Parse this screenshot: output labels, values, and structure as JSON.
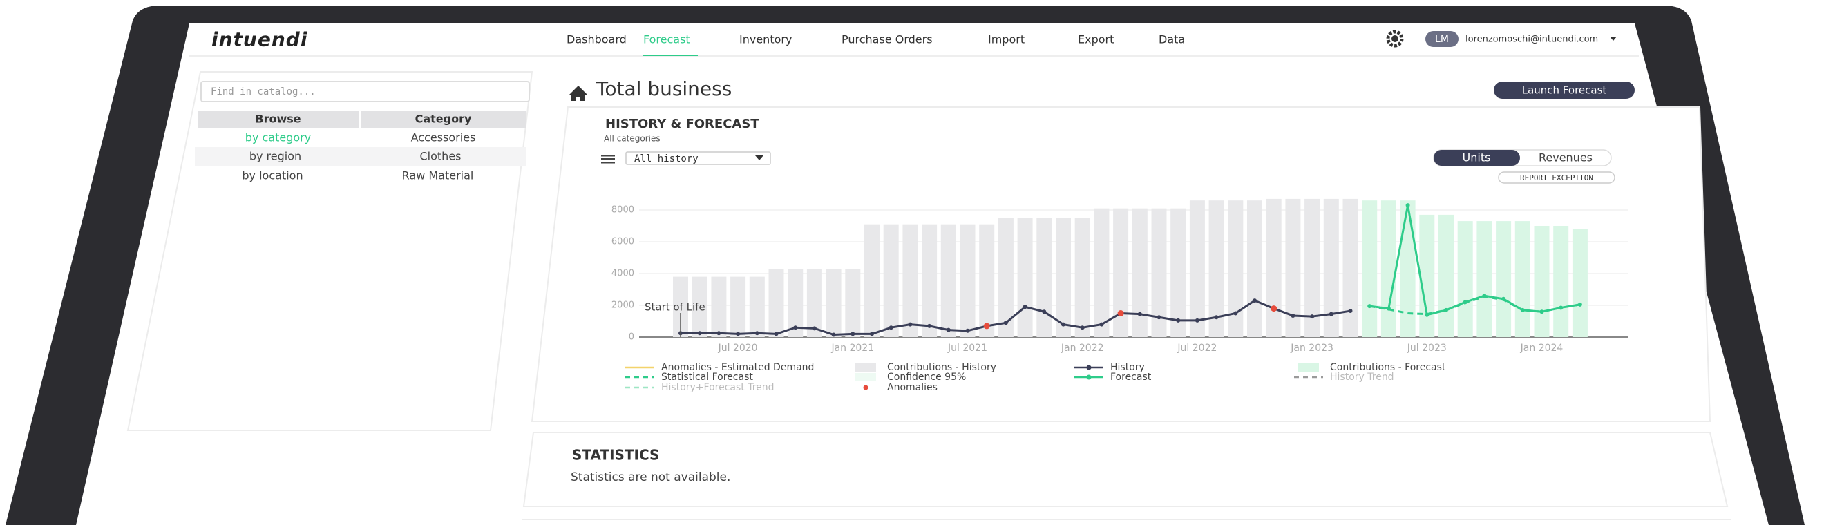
{
  "header": {
    "logo": "intuendi",
    "nav": [
      "Dashboard",
      "Forecast",
      "Inventory",
      "Purchase Orders",
      "Import",
      "Export",
      "Data"
    ],
    "active": 1,
    "avatar": "LM",
    "user": "lorenzomoschi@intuendi.com"
  },
  "sidebar": {
    "search_placeholder": "Find in catalog...",
    "columns": [
      "Browse",
      "Category"
    ],
    "rows": [
      [
        "by category",
        "Accessories"
      ],
      [
        "by region",
        "Clothes"
      ],
      [
        "by location",
        "Raw Material"
      ]
    ],
    "active_row": 0
  },
  "page": {
    "title": "Total business",
    "launch_button": "Launch Forecast",
    "chart_card": {
      "title": "HISTORY & FORECAST",
      "subtitle": "All categories",
      "period": "All history",
      "toggle": [
        "Units",
        "Revenues"
      ],
      "toggle_active": 0,
      "report_button": "REPORT EXCEPTION"
    },
    "statistics": {
      "title": "STATISTICS",
      "message": "Statistics are not available."
    }
  },
  "chart_data": {
    "type": "bar_line",
    "annotation": "Start of Life",
    "categories": [
      null,
      null,
      null,
      "Jul 2020",
      null,
      null,
      null,
      null,
      null,
      "Jan 2021",
      null,
      null,
      null,
      null,
      null,
      "Jul 2021",
      null,
      null,
      null,
      null,
      null,
      "Jan 2022",
      null,
      null,
      null,
      null,
      null,
      "Jul 2022",
      null,
      null,
      null,
      null,
      null,
      "Jan 2023",
      null,
      null,
      null,
      null,
      null,
      "Jul 2023",
      null,
      null,
      null,
      null,
      null,
      "Jan 2024",
      null,
      null
    ],
    "ylim": [
      0,
      9000
    ],
    "yticks": [
      0,
      2000,
      4000,
      6000,
      8000
    ],
    "grid": true,
    "series": [
      {
        "name": "Anomalies - Estimated Demand",
        "color": "#f3d36b",
        "style": "line"
      },
      {
        "name": "Contributions - History",
        "color": "#e8e8ea",
        "style": "bar",
        "values": [
          3800,
          3800,
          3800,
          3800,
          3800,
          4300,
          4300,
          4300,
          4300,
          4300,
          7100,
          7100,
          7100,
          7100,
          7100,
          7100,
          7100,
          7500,
          7500,
          7500,
          7500,
          7500,
          8100,
          8100,
          8100,
          8100,
          8100,
          8600,
          8600,
          8600,
          8600,
          8700,
          8700,
          8700,
          8700,
          8700,
          null,
          null,
          null,
          null,
          null,
          null,
          null,
          null,
          null,
          null,
          null,
          null
        ]
      },
      {
        "name": "History",
        "color": "#3b3f58",
        "style": "line-dot",
        "values": [
          250,
          250,
          250,
          200,
          250,
          200,
          600,
          550,
          150,
          200,
          200,
          600,
          800,
          700,
          450,
          400,
          700,
          900,
          1900,
          1600,
          800,
          600,
          800,
          1500,
          1450,
          1250,
          1050,
          1050,
          1250,
          1500,
          2300,
          1800,
          1350,
          1300,
          1450,
          1650,
          null,
          null,
          null,
          null,
          null,
          null,
          null,
          null,
          null,
          null,
          null,
          null
        ]
      },
      {
        "name": "Contributions - Forecast",
        "color": "#d9f6e5",
        "style": "bar",
        "values": [
          null,
          null,
          null,
          null,
          null,
          null,
          null,
          null,
          null,
          null,
          null,
          null,
          null,
          null,
          null,
          null,
          null,
          null,
          null,
          null,
          null,
          null,
          null,
          null,
          null,
          null,
          null,
          null,
          null,
          null,
          null,
          null,
          null,
          null,
          null,
          null,
          8600,
          8600,
          8600,
          7700,
          7700,
          7300,
          7300,
          7300,
          7300,
          7000,
          7000,
          6800
        ]
      },
      {
        "name": "Statistical Forecast",
        "color": "#2ecc8a",
        "style": "dashed",
        "values": [
          null,
          null,
          null,
          null,
          null,
          null,
          null,
          null,
          null,
          null,
          null,
          null,
          null,
          null,
          null,
          null,
          null,
          null,
          null,
          null,
          null,
          null,
          null,
          null,
          null,
          null,
          null,
          null,
          null,
          null,
          null,
          null,
          null,
          null,
          null,
          null,
          1950,
          1750,
          1500,
          1450,
          1700,
          2150,
          2550,
          2350,
          1700,
          1600,
          1850,
          2050
        ]
      },
      {
        "name": "Confidence 95%",
        "color": "#eefaf3",
        "style": "area"
      },
      {
        "name": "Forecast",
        "color": "#2ecc8a",
        "style": "line-dot",
        "values": [
          null,
          null,
          null,
          null,
          null,
          null,
          null,
          null,
          null,
          null,
          null,
          null,
          null,
          null,
          null,
          null,
          null,
          null,
          null,
          null,
          null,
          null,
          null,
          null,
          null,
          null,
          null,
          null,
          null,
          null,
          null,
          null,
          null,
          null,
          null,
          null,
          1950,
          1800,
          8300,
          1400,
          1700,
          2200,
          2600,
          2400,
          1700,
          1600,
          1850,
          2050
        ]
      },
      {
        "name": "History Trend",
        "color": "#9a9a9a",
        "style": "dashed",
        "muted": true
      },
      {
        "name": "History+Forecast Trend",
        "color": "#9ee6c4",
        "style": "dashed",
        "muted": true
      },
      {
        "name": "Anomalies",
        "color": "#e74c3c",
        "style": "dot",
        "values": [
          null,
          null,
          null,
          null,
          null,
          null,
          null,
          null,
          null,
          null,
          null,
          null,
          null,
          null,
          null,
          null,
          700,
          null,
          null,
          null,
          null,
          null,
          null,
          1500,
          null,
          null,
          null,
          null,
          null,
          null,
          null,
          1800,
          null,
          null,
          null,
          null,
          null,
          null,
          null,
          null,
          null,
          null,
          null,
          null,
          null,
          null,
          null,
          null
        ]
      }
    ]
  }
}
